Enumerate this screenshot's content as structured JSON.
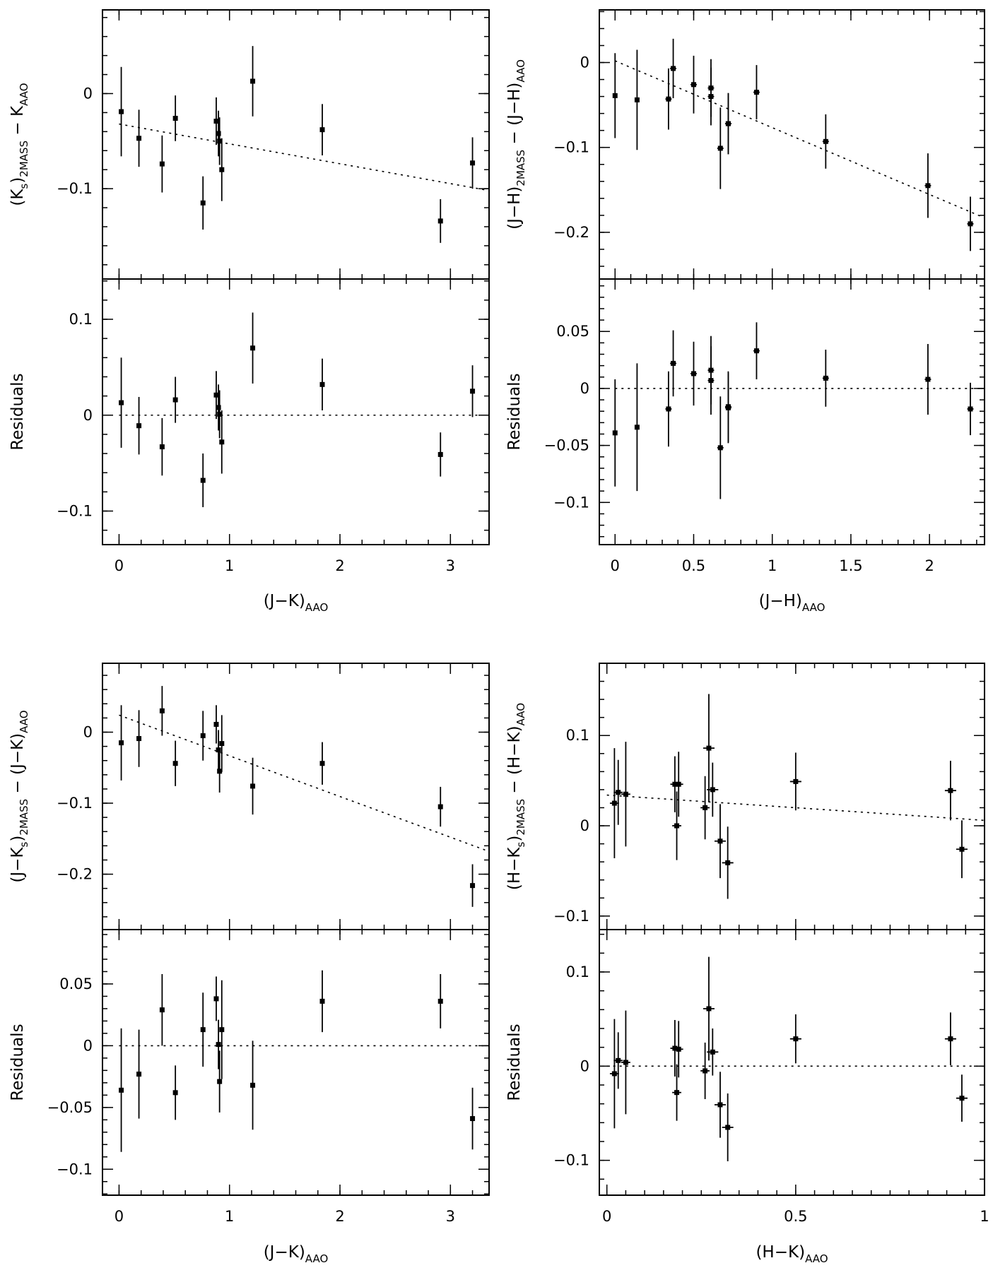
{
  "chart_data": [
    {
      "id": "jk-ks",
      "type": "scatter",
      "xlabel": {
        "main": "(J−K)",
        "sub": "AAO"
      },
      "xlim": [
        -0.15,
        3.35
      ],
      "xticks": [
        0,
        1,
        2,
        3
      ],
      "xminor": 0.2,
      "top": {
        "ylabel": [
          {
            "t": "(K"
          },
          {
            "t": "s",
            "sub": true
          },
          {
            "t": ")"
          },
          {
            "t": "2MASS",
            "sub": true
          },
          {
            "t": " − K"
          },
          {
            "t": "AAO",
            "sub": true
          }
        ],
        "ylim": [
          -0.195,
          0.088
        ],
        "yticks": [
          -0.1,
          0
        ],
        "yminor": 0.02,
        "fit": [
          [
            0,
            -0.032
          ],
          [
            3.35,
            -0.102
          ]
        ],
        "points": [
          {
            "x": 0.02,
            "y": -0.019,
            "ey": 0.047
          },
          {
            "x": 0.18,
            "y": -0.047,
            "ey": 0.03
          },
          {
            "x": 0.39,
            "y": -0.074,
            "ey": 0.03
          },
          {
            "x": 0.51,
            "y": -0.026,
            "ey": 0.024
          },
          {
            "x": 0.76,
            "y": -0.115,
            "ey": 0.028
          },
          {
            "x": 0.88,
            "y": -0.029,
            "ey": 0.025
          },
          {
            "x": 0.9,
            "y": -0.042,
            "ey": 0.024
          },
          {
            "x": 0.91,
            "y": -0.05,
            "ey": 0.025
          },
          {
            "x": 0.93,
            "y": -0.08,
            "ey": 0.033
          },
          {
            "x": 1.21,
            "y": 0.013,
            "ey": 0.037
          },
          {
            "x": 1.84,
            "y": -0.038,
            "ey": 0.027
          },
          {
            "x": 2.91,
            "y": -0.134,
            "ey": 0.023
          },
          {
            "x": 3.2,
            "y": -0.073,
            "ey": 0.027
          }
        ]
      },
      "bottom": {
        "ylabel": [
          {
            "t": "Residuals"
          }
        ],
        "ylim": [
          -0.135,
          0.142
        ],
        "yticks": [
          -0.1,
          0,
          0.1
        ],
        "yminor": 0.02,
        "fit": [
          [
            0,
            0
          ],
          [
            3.35,
            0
          ]
        ],
        "points": [
          {
            "x": 0.02,
            "y": 0.013,
            "ey": 0.047
          },
          {
            "x": 0.18,
            "y": -0.011,
            "ey": 0.03
          },
          {
            "x": 0.39,
            "y": -0.033,
            "ey": 0.03
          },
          {
            "x": 0.51,
            "y": 0.016,
            "ey": 0.024
          },
          {
            "x": 0.76,
            "y": -0.068,
            "ey": 0.028
          },
          {
            "x": 0.88,
            "y": 0.021,
            "ey": 0.025
          },
          {
            "x": 0.9,
            "y": 0.008,
            "ey": 0.024
          },
          {
            "x": 0.91,
            "y": 0.001,
            "ey": 0.025
          },
          {
            "x": 0.93,
            "y": -0.028,
            "ey": 0.033
          },
          {
            "x": 1.21,
            "y": 0.07,
            "ey": 0.037
          },
          {
            "x": 1.84,
            "y": 0.032,
            "ey": 0.027
          },
          {
            "x": 2.91,
            "y": -0.041,
            "ey": 0.023
          },
          {
            "x": 3.2,
            "y": 0.025,
            "ey": 0.027
          }
        ]
      }
    },
    {
      "id": "jh-jh",
      "type": "scatter",
      "xlabel": {
        "main": "(J−H)",
        "sub": "AAO"
      },
      "xlim": [
        -0.1,
        2.35
      ],
      "xticks": [
        0,
        0.5,
        1,
        1.5,
        2
      ],
      "xminor": 0.1,
      "top": {
        "ylabel": [
          {
            "t": "(J−H)"
          },
          {
            "t": "2MASS",
            "sub": true
          },
          {
            "t": " − (J−H)"
          },
          {
            "t": "AAO",
            "sub": true
          }
        ],
        "ylim": [
          -0.255,
          0.062
        ],
        "yticks": [
          -0.2,
          -0.1,
          0
        ],
        "yminor": 0.02,
        "fit": [
          [
            0,
            0.002
          ],
          [
            2.35,
            -0.183
          ]
        ],
        "points": [
          {
            "x": 0.0,
            "y": -0.039,
            "ey": 0.05
          },
          {
            "x": 0.14,
            "y": -0.044,
            "ey": 0.059
          },
          {
            "x": 0.34,
            "y": -0.043,
            "ey": 0.036,
            "ex": 0.02
          },
          {
            "x": 0.37,
            "y": -0.007,
            "ey": 0.035,
            "ex": 0.02
          },
          {
            "x": 0.5,
            "y": -0.026,
            "ey": 0.034,
            "ex": 0.02
          },
          {
            "x": 0.61,
            "y": -0.03,
            "ey": 0.034,
            "ex": 0.02
          },
          {
            "x": 0.61,
            "y": -0.04,
            "ey": 0.034,
            "ex": 0.02
          },
          {
            "x": 0.67,
            "y": -0.101,
            "ey": 0.048,
            "ex": 0.02
          },
          {
            "x": 0.72,
            "y": -0.072,
            "ey": 0.036,
            "ex": 0.02
          },
          {
            "x": 0.72,
            "y": -0.072,
            "ey": 0.036,
            "ex": 0.02
          },
          {
            "x": 0.9,
            "y": -0.035,
            "ey": 0.032,
            "ex": 0.02
          },
          {
            "x": 1.34,
            "y": -0.093,
            "ey": 0.032,
            "ex": 0.02
          },
          {
            "x": 1.99,
            "y": -0.145,
            "ey": 0.038,
            "ex": 0.02
          },
          {
            "x": 2.26,
            "y": -0.19,
            "ey": 0.032,
            "ex": 0.02
          }
        ]
      },
      "bottom": {
        "ylabel": [
          {
            "t": "Residuals"
          }
        ],
        "ylim": [
          -0.137,
          0.096
        ],
        "yticks": [
          -0.1,
          -0.05,
          0,
          0.05
        ],
        "yminor": 0.01,
        "fit": [
          [
            0,
            0
          ],
          [
            2.35,
            0
          ]
        ],
        "points": [
          {
            "x": 0.0,
            "y": -0.039,
            "ey": 0.047
          },
          {
            "x": 0.14,
            "y": -0.034,
            "ey": 0.056
          },
          {
            "x": 0.34,
            "y": -0.018,
            "ey": 0.033,
            "ex": 0.02
          },
          {
            "x": 0.37,
            "y": 0.022,
            "ey": 0.029,
            "ex": 0.02
          },
          {
            "x": 0.5,
            "y": 0.013,
            "ey": 0.028,
            "ex": 0.02
          },
          {
            "x": 0.61,
            "y": 0.016,
            "ey": 0.03,
            "ex": 0.02
          },
          {
            "x": 0.61,
            "y": 0.007,
            "ey": 0.03,
            "ex": 0.02
          },
          {
            "x": 0.67,
            "y": -0.052,
            "ey": 0.045,
            "ex": 0.02
          },
          {
            "x": 0.72,
            "y": -0.017,
            "ey": 0.031,
            "ex": 0.02
          },
          {
            "x": 0.72,
            "y": -0.016,
            "ey": 0.031,
            "ex": 0.02
          },
          {
            "x": 0.9,
            "y": 0.033,
            "ey": 0.025,
            "ex": 0.02
          },
          {
            "x": 1.34,
            "y": 0.009,
            "ey": 0.025,
            "ex": 0.02
          },
          {
            "x": 1.99,
            "y": 0.008,
            "ey": 0.031,
            "ex": 0.02
          },
          {
            "x": 2.26,
            "y": -0.018,
            "ey": 0.023,
            "ex": 0.02
          }
        ]
      }
    },
    {
      "id": "jk-jk",
      "type": "scatter",
      "xlabel": {
        "main": "(J−K)",
        "sub": "AAO"
      },
      "xlim": [
        -0.15,
        3.35
      ],
      "xticks": [
        0,
        1,
        2,
        3
      ],
      "xminor": 0.2,
      "top": {
        "ylabel": [
          {
            "t": "(J−K"
          },
          {
            "t": "s",
            "sub": true
          },
          {
            "t": ")"
          },
          {
            "t": "2MASS",
            "sub": true
          },
          {
            "t": " − (J−K)"
          },
          {
            "t": "AAO",
            "sub": true
          }
        ],
        "ylim": [
          -0.278,
          0.097
        ],
        "yticks": [
          -0.2,
          -0.1,
          0
        ],
        "yminor": 0.02,
        "fit": [
          [
            0,
            0.024
          ],
          [
            3.35,
            -0.168
          ]
        ],
        "points": [
          {
            "x": 0.02,
            "y": -0.015,
            "ey": 0.053
          },
          {
            "x": 0.18,
            "y": -0.009,
            "ey": 0.04
          },
          {
            "x": 0.39,
            "y": 0.03,
            "ey": 0.035
          },
          {
            "x": 0.51,
            "y": -0.044,
            "ey": 0.032
          },
          {
            "x": 0.76,
            "y": -0.005,
            "ey": 0.035
          },
          {
            "x": 0.88,
            "y": 0.011,
            "ey": 0.027
          },
          {
            "x": 0.9,
            "y": -0.025,
            "ey": 0.028
          },
          {
            "x": 0.91,
            "y": -0.055,
            "ey": 0.03
          },
          {
            "x": 0.93,
            "y": -0.016,
            "ey": 0.04
          },
          {
            "x": 1.21,
            "y": -0.076,
            "ey": 0.04
          },
          {
            "x": 1.84,
            "y": -0.044,
            "ey": 0.03
          },
          {
            "x": 2.91,
            "y": -0.105,
            "ey": 0.028
          },
          {
            "x": 3.2,
            "y": -0.216,
            "ey": 0.03
          }
        ]
      },
      "bottom": {
        "ylabel": [
          {
            "t": "Residuals"
          }
        ],
        "ylim": [
          -0.121,
          0.094
        ],
        "yticks": [
          -0.1,
          -0.05,
          0,
          0.05
        ],
        "yminor": 0.01,
        "fit": [
          [
            0,
            0
          ],
          [
            3.35,
            0
          ]
        ],
        "points": [
          {
            "x": 0.02,
            "y": -0.036,
            "ey": 0.05
          },
          {
            "x": 0.18,
            "y": -0.023,
            "ey": 0.036
          },
          {
            "x": 0.39,
            "y": 0.029,
            "ey": 0.029
          },
          {
            "x": 0.51,
            "y": -0.038,
            "ey": 0.022
          },
          {
            "x": 0.76,
            "y": 0.013,
            "ey": 0.03
          },
          {
            "x": 0.88,
            "y": 0.038,
            "ey": 0.018
          },
          {
            "x": 0.9,
            "y": 0.001,
            "ey": 0.02
          },
          {
            "x": 0.91,
            "y": -0.029,
            "ey": 0.025
          },
          {
            "x": 0.93,
            "y": 0.013,
            "ey": 0.04
          },
          {
            "x": 1.21,
            "y": -0.032,
            "ey": 0.036
          },
          {
            "x": 1.84,
            "y": 0.036,
            "ey": 0.025
          },
          {
            "x": 2.91,
            "y": 0.036,
            "ey": 0.022
          },
          {
            "x": 3.2,
            "y": -0.059,
            "ey": 0.025
          }
        ]
      }
    },
    {
      "id": "hk-hk",
      "type": "scatter",
      "xlabel": {
        "main": "(H−K)",
        "sub": "AAO"
      },
      "xlim": [
        -0.02,
        1.0
      ],
      "xticks": [
        0,
        0.5,
        1
      ],
      "xminor": 0.05,
      "top": {
        "ylabel": [
          {
            "t": "(H−K"
          },
          {
            "t": "s",
            "sub": true
          },
          {
            "t": ")"
          },
          {
            "t": "2MASS",
            "sub": true
          },
          {
            "t": " − (H−K)"
          },
          {
            "t": "AAO",
            "sub": true
          }
        ],
        "ylim": [
          -0.115,
          0.18
        ],
        "yticks": [
          -0.1,
          0,
          0.1
        ],
        "yminor": 0.02,
        "fit": [
          [
            0,
            0.034
          ],
          [
            1.0,
            0.006
          ]
        ],
        "points": [
          {
            "x": 0.02,
            "y": 0.025,
            "ey": 0.061,
            "ex": 0.012
          },
          {
            "x": 0.03,
            "y": 0.037,
            "ey": 0.036,
            "ex": 0.012
          },
          {
            "x": 0.05,
            "y": 0.035,
            "ey": 0.058,
            "ex": 0.012
          },
          {
            "x": 0.18,
            "y": 0.046,
            "ey": 0.031,
            "ex": 0.012
          },
          {
            "x": 0.185,
            "y": 0.0,
            "ey": 0.038,
            "ex": 0.012
          },
          {
            "x": 0.19,
            "y": 0.046,
            "ey": 0.036,
            "ex": 0.012
          },
          {
            "x": 0.26,
            "y": 0.02,
            "ey": 0.035,
            "ex": 0.012
          },
          {
            "x": 0.27,
            "y": 0.086,
            "ey": 0.06,
            "ex": 0.015
          },
          {
            "x": 0.28,
            "y": 0.04,
            "ey": 0.03,
            "ex": 0.015
          },
          {
            "x": 0.3,
            "y": -0.017,
            "ey": 0.041,
            "ex": 0.015
          },
          {
            "x": 0.32,
            "y": -0.041,
            "ey": 0.04,
            "ex": 0.015
          },
          {
            "x": 0.5,
            "y": 0.049,
            "ey": 0.032,
            "ex": 0.015
          },
          {
            "x": 0.91,
            "y": 0.039,
            "ey": 0.033,
            "ex": 0.015
          },
          {
            "x": 0.94,
            "y": -0.026,
            "ey": 0.032,
            "ex": 0.015
          }
        ]
      },
      "bottom": {
        "ylabel": [
          {
            "t": "Residuals"
          }
        ],
        "ylim": [
          -0.137,
          0.145
        ],
        "yticks": [
          -0.1,
          0,
          0.1
        ],
        "yminor": 0.02,
        "fit": [
          [
            0,
            0
          ],
          [
            1.0,
            0
          ]
        ],
        "points": [
          {
            "x": 0.02,
            "y": -0.008,
            "ey": 0.058,
            "ex": 0.012
          },
          {
            "x": 0.03,
            "y": 0.006,
            "ey": 0.03,
            "ex": 0.012
          },
          {
            "x": 0.05,
            "y": 0.004,
            "ey": 0.055,
            "ex": 0.012
          },
          {
            "x": 0.18,
            "y": 0.019,
            "ey": 0.03,
            "ex": 0.012
          },
          {
            "x": 0.185,
            "y": -0.028,
            "ey": 0.03,
            "ex": 0.012
          },
          {
            "x": 0.19,
            "y": 0.018,
            "ey": 0.03,
            "ex": 0.012
          },
          {
            "x": 0.26,
            "y": -0.005,
            "ey": 0.03,
            "ex": 0.012
          },
          {
            "x": 0.27,
            "y": 0.061,
            "ey": 0.055,
            "ex": 0.015
          },
          {
            "x": 0.28,
            "y": 0.015,
            "ey": 0.025,
            "ex": 0.015
          },
          {
            "x": 0.3,
            "y": -0.041,
            "ey": 0.035,
            "ex": 0.015
          },
          {
            "x": 0.32,
            "y": -0.065,
            "ey": 0.036,
            "ex": 0.015
          },
          {
            "x": 0.5,
            "y": 0.029,
            "ey": 0.026,
            "ex": 0.015
          },
          {
            "x": 0.91,
            "y": 0.029,
            "ey": 0.028,
            "ex": 0.015
          },
          {
            "x": 0.94,
            "y": -0.034,
            "ey": 0.025,
            "ex": 0.015
          }
        ]
      }
    }
  ]
}
